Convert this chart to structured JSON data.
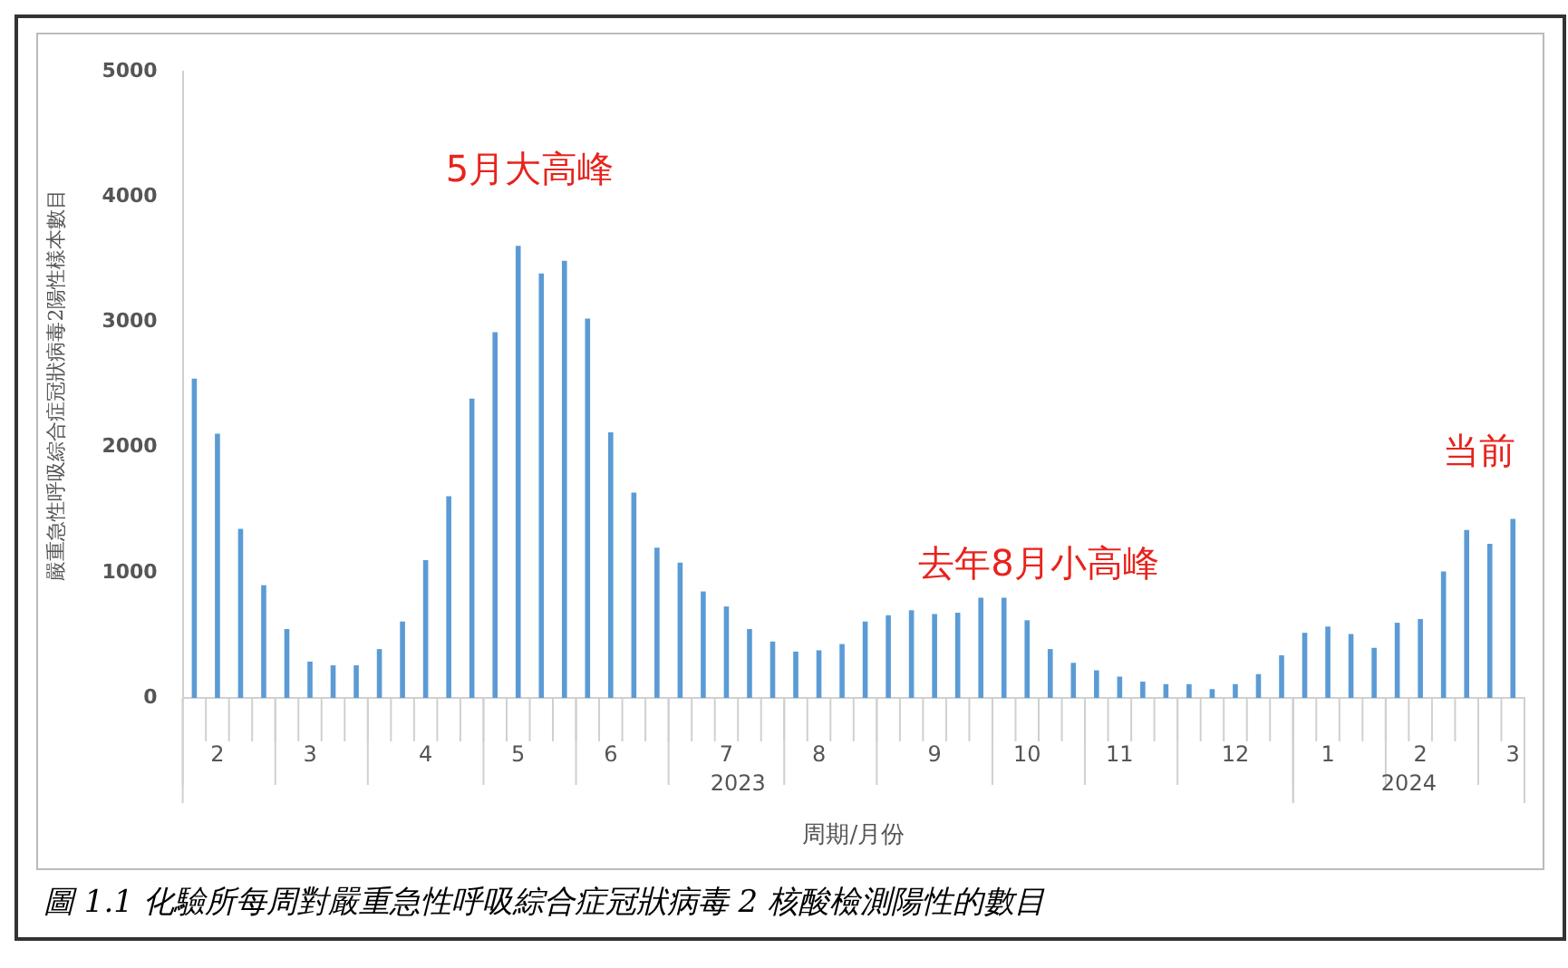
{
  "chart_data": {
    "type": "bar",
    "title": "圖 1.1 化驗所每周對嚴重急性呼吸綜合症冠狀病毒 2 核酸檢測陽性的數目",
    "xlabel": "周期/月份",
    "ylabel": "嚴重急性呼吸綜合症冠狀病毒2陽性樣本數目",
    "categories": [
      null,
      "2",
      null,
      null,
      null,
      "3",
      null,
      null,
      null,
      null,
      "4",
      null,
      null,
      null,
      "5",
      null,
      null,
      null,
      "6",
      null,
      null,
      null,
      null,
      "7",
      null,
      null,
      null,
      "8",
      null,
      null,
      null,
      null,
      "9",
      null,
      null,
      null,
      "10",
      null,
      null,
      null,
      "11",
      null,
      null,
      null,
      null,
      "12",
      null,
      null,
      null,
      "1",
      null,
      null,
      null,
      "2",
      null,
      null,
      null,
      "3"
    ],
    "values": [
      2550,
      2110,
      1350,
      900,
      550,
      290,
      260,
      260,
      390,
      610,
      1100,
      1610,
      2390,
      2920,
      3610,
      3390,
      3490,
      3030,
      2120,
      1640,
      1200,
      1080,
      850,
      730,
      550,
      450,
      370,
      380,
      430,
      610,
      660,
      700,
      670,
      680,
      800,
      800,
      620,
      390,
      280,
      220,
      170,
      130,
      110,
      110,
      70,
      110,
      190,
      340,
      520,
      570,
      510,
      400,
      600,
      630,
      1010,
      1340,
      1230,
      1430
    ],
    "color": "#5b9bd5",
    "ylim": [
      0,
      5000
    ],
    "yticks": [
      0,
      1000,
      2000,
      3000,
      4000,
      5000
    ],
    "grid": false,
    "annotations": [
      "5月大高峰",
      "去年8月小高峰",
      "当前",
      "2023",
      "2024"
    ]
  }
}
